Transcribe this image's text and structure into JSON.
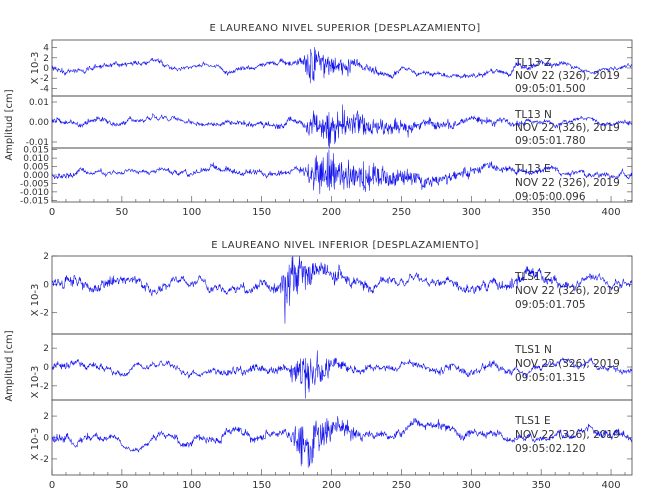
{
  "colors": {
    "trace": "#1010ee",
    "axes": "#444444",
    "text": "#333333"
  },
  "chart_data": [
    {
      "type": "line",
      "title": "E LAUREANO NIVEL SUPERIOR [DESPLAZAMIENTO]",
      "xlabel": "",
      "ylabel": "Amplitud [cm]",
      "xlim": [
        0,
        415
      ],
      "xticks": [
        "0",
        "50",
        "100",
        "150",
        "200",
        "250",
        "300",
        "350",
        "400"
      ],
      "panels": [
        {
          "channel": "Z",
          "scale_label": "X 10-3",
          "ylim": [
            -5.5,
            5.5
          ],
          "yticks": [
            "4",
            "2",
            "0",
            "-2",
            "-4"
          ],
          "annotation": [
            "TL13   Z",
            "NOV 22 (326), 2019",
            "09:05:01.500"
          ],
          "signal": {
            "amplitude_peak": 4.5,
            "onset_s": 175,
            "peak_s": 185,
            "coda_s": 240
          }
        },
        {
          "channel": "N",
          "scale_label": "",
          "ylim": [
            -0.013,
            0.013
          ],
          "yticks": [
            "0.01",
            "0.00",
            "-0.01"
          ],
          "annotation": [
            "TL13   N",
            "NOV 22 (326), 2019",
            "09:05:01.780"
          ],
          "signal": {
            "amplitude_peak": 0.012,
            "onset_s": 175,
            "peak_s": 195,
            "coda_s": 300
          }
        },
        {
          "channel": "E",
          "scale_label": "",
          "ylim": [
            -0.016,
            0.016
          ],
          "yticks": [
            "0.015",
            "0.010",
            "0.005",
            "0.000",
            "-0.005",
            "-0.010",
            "-0.015"
          ],
          "annotation": [
            "TL13   E",
            "NOV 22 (326), 2019",
            "09:05:00.096"
          ],
          "signal": {
            "amplitude_peak": 0.015,
            "onset_s": 175,
            "peak_s": 195,
            "coda_s": 320
          }
        }
      ]
    },
    {
      "type": "line",
      "title": "E LAUREANO NIVEL INFERIOR [DESPLAZAMIENTO]",
      "xlabel": "",
      "ylabel": "Amplitud [cm]",
      "xlim": [
        0,
        415
      ],
      "xticks": [
        "0",
        "50",
        "100",
        "150",
        "200",
        "250",
        "300",
        "350",
        "400"
      ],
      "panels": [
        {
          "channel": "Z",
          "scale_label": "X 10-3",
          "ylim": [
            -3.5,
            2
          ],
          "yticks": [
            "2",
            "0",
            "-2"
          ],
          "annotation": [
            "TLS1   Z",
            "NOV 22 (326), 2019",
            "09:05:01.705"
          ],
          "signal": {
            "amplitude_peak": 3.0,
            "onset_s": 162,
            "peak_s": 168,
            "coda_s": 210
          }
        },
        {
          "channel": "N",
          "scale_label": "X 10-3",
          "ylim": [
            -3.5,
            3.5
          ],
          "yticks": [
            "2",
            "0",
            "-2"
          ],
          "annotation": [
            "TLS1   N",
            "NOV 22 (326), 2019",
            "09:05:01.315"
          ],
          "signal": {
            "amplitude_peak": 3.2,
            "onset_s": 168,
            "peak_s": 180,
            "coda_s": 220
          }
        },
        {
          "channel": "E",
          "scale_label": "X 10-3",
          "ylim": [
            -3.5,
            3.5
          ],
          "yticks": [
            "2",
            "0",
            "-2"
          ],
          "annotation": [
            "TLS1   E",
            "NOV 22 (326), 2019",
            "09:05:02.120"
          ],
          "signal": {
            "amplitude_peak": 3.3,
            "onset_s": 168,
            "peak_s": 180,
            "coda_s": 225
          }
        }
      ]
    }
  ]
}
